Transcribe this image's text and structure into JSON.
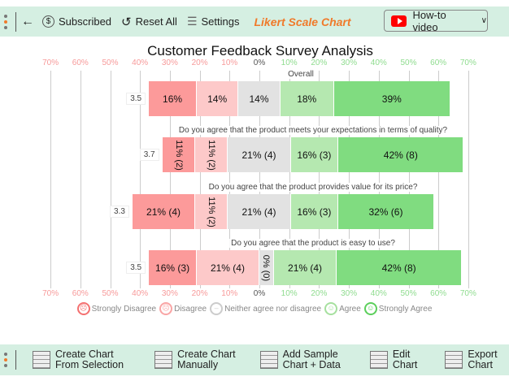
{
  "toolbar": {
    "subscribed": "Subscribed",
    "reset": "Reset All",
    "settings": "Settings",
    "app_title": "Likert Scale Chart",
    "howto": "How-to video"
  },
  "footer": {
    "create_selection": [
      "Create Chart",
      "From Selection"
    ],
    "create_manual": [
      "Create Chart",
      "Manually"
    ],
    "add_sample": [
      "Add Sample",
      "Chart + Data"
    ],
    "edit": [
      "Edit",
      "Chart"
    ],
    "export": [
      "Export",
      "Chart"
    ]
  },
  "chart_data": {
    "type": "bar",
    "title": "Customer Feedback Survey Analysis",
    "ticks": [
      "70%",
      "60%",
      "50%",
      "40%",
      "30%",
      "20%",
      "10%",
      "0%",
      "10%",
      "20%",
      "30%",
      "40%",
      "50%",
      "60%",
      "70%"
    ],
    "xlim": [
      -70,
      70
    ],
    "categories": [
      "Strongly Disagree",
      "Disagree",
      "Neither agree nor disagree",
      "Agree",
      "Strongly Agree"
    ],
    "colors": [
      "#fc9a9a",
      "#fdc9c9",
      "#e2e2e2",
      "#b5e8b0",
      "#80dc80"
    ],
    "legend_colors": [
      "#f47070",
      "#f9a5a5",
      "#cccccc",
      "#a6e09f",
      "#5ccf5c"
    ],
    "rows": [
      {
        "question": "Overall",
        "score": "3.5",
        "pct": [
          16,
          14,
          14,
          18,
          39
        ],
        "labels": [
          "16%",
          "14%",
          "14%",
          "18%",
          "39%"
        ]
      },
      {
        "question": "Do you agree that the product meets your expectations in terms of quality?",
        "score": "3.7",
        "pct": [
          11,
          11,
          21,
          16,
          42
        ],
        "labels": [
          "11% (2)",
          "11% (2)",
          "21% (4)",
          "16% (3)",
          "42% (8)"
        ]
      },
      {
        "question": "Do you agree that the product provides value for its price?",
        "score": "3.3",
        "pct": [
          21,
          11,
          21,
          16,
          32
        ],
        "labels": [
          "21% (4)",
          "11% (2)",
          "21% (4)",
          "16% (3)",
          "32% (6)"
        ]
      },
      {
        "question": "Do you agree that the product is easy to use?",
        "score": "3.5",
        "pct": [
          16,
          21,
          0,
          21,
          42
        ],
        "labels": [
          "16% (3)",
          "21% (4)",
          "0% (0)",
          "21% (4)",
          "42% (8)"
        ]
      }
    ]
  }
}
